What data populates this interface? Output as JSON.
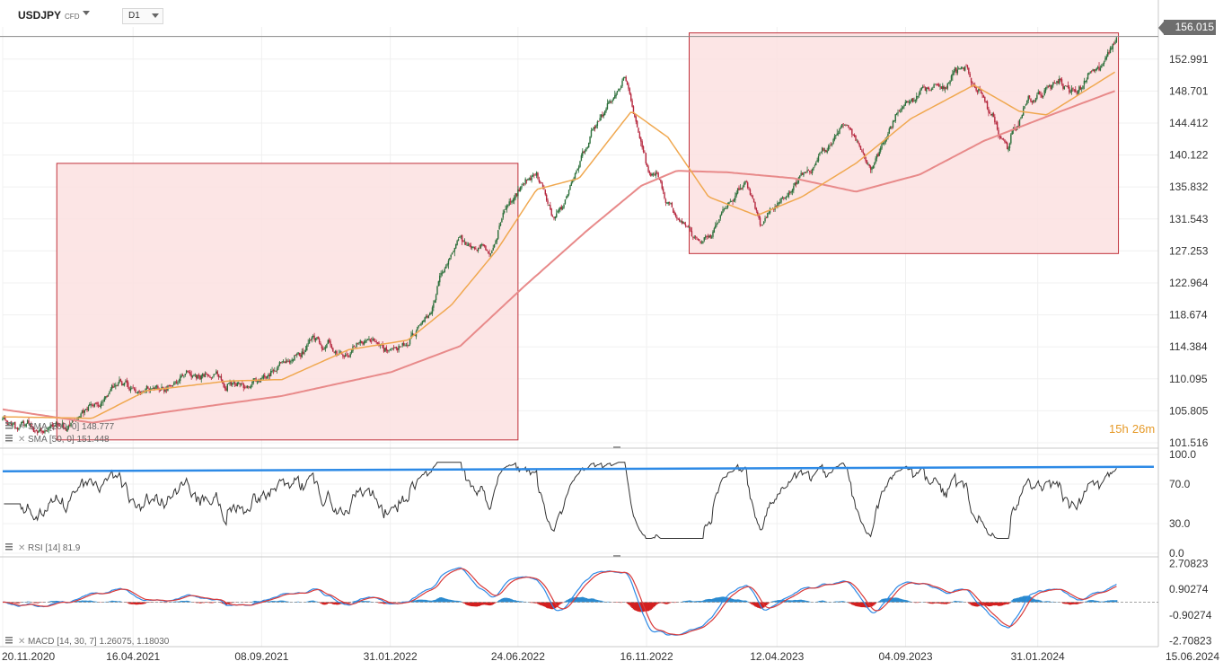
{
  "header": {
    "symbol": "USDJPY",
    "symbol_type": "CFD",
    "timeframe": "D1"
  },
  "current_price_label": "156.015",
  "timer": {
    "hours": "15",
    "h": "h",
    "minutes": "26",
    "m": "m"
  },
  "colors": {
    "up_candle": "#2b6f3a",
    "down_candle": "#b5263d",
    "sma_fast": "#f0a850",
    "sma_slow": "#e88a8a",
    "box_fill": "#fbe1e1",
    "box_stroke": "#c0303a",
    "rsi": "#333333",
    "rsi_trend": "#2d8ae6",
    "macd_line": "#2d8ae6",
    "signal_line": "#d93a3a",
    "hist_pos": "#2a8acf",
    "hist_neg": "#d21f1f"
  },
  "chart_data": [
    {
      "type": "candlestick",
      "panel": "price",
      "title": "USDJPY",
      "y_ticks": [
        "152.991",
        "148.701",
        "144.412",
        "140.122",
        "135.832",
        "131.543",
        "127.253",
        "122.964",
        "118.674",
        "114.384",
        "110.095",
        "105.805",
        "101.516"
      ],
      "ylim": [
        101.516,
        157.3
      ],
      "x_ticks": [
        "20.11.2020",
        "16.04.2021",
        "08.09.2021",
        "31.01.2022",
        "24.06.2022",
        "16.11.2022",
        "12.04.2023",
        "04.09.2023",
        "31.01.2024",
        "15.06.2024"
      ],
      "xlim": [
        "2020-11-20",
        "2024-06-15"
      ],
      "last_price": 156.015,
      "close_path": [
        [
          "2020-11-20",
          104.5
        ],
        [
          "2020-12-20",
          103.5
        ],
        [
          "2021-01-05",
          103.0
        ],
        [
          "2021-01-25",
          103.7
        ],
        [
          "2021-02-20",
          105.5
        ],
        [
          "2021-03-20",
          108.8
        ],
        [
          "2021-04-05",
          110.3
        ],
        [
          "2021-04-22",
          108.0
        ],
        [
          "2021-05-20",
          109.2
        ],
        [
          "2021-06-20",
          110.2
        ],
        [
          "2021-07-15",
          110.0
        ],
        [
          "2021-08-15",
          109.5
        ],
        [
          "2021-09-05",
          109.8
        ],
        [
          "2021-09-25",
          111.4
        ],
        [
          "2021-10-20",
          114.0
        ],
        [
          "2021-11-20",
          114.5
        ],
        [
          "2021-12-15",
          113.6
        ],
        [
          "2022-01-05",
          115.8
        ],
        [
          "2022-01-25",
          114.0
        ],
        [
          "2022-02-20",
          115.0
        ],
        [
          "2022-03-15",
          118.5
        ],
        [
          "2022-03-28",
          123.5
        ],
        [
          "2022-04-20",
          128.5
        ],
        [
          "2022-05-24",
          127.0
        ],
        [
          "2022-06-15",
          134.5
        ],
        [
          "2022-06-24",
          135.5
        ],
        [
          "2022-07-15",
          138.5
        ],
        [
          "2022-08-02",
          131.5
        ],
        [
          "2022-08-25",
          137.0
        ],
        [
          "2022-09-20",
          144.0
        ],
        [
          "2022-10-21",
          150.5
        ],
        [
          "2022-10-30",
          147.0
        ],
        [
          "2022-11-15",
          139.5
        ],
        [
          "2022-12-01",
          136.0
        ],
        [
          "2022-12-20",
          131.0
        ],
        [
          "2023-01-16",
          127.8
        ],
        [
          "2023-02-05",
          131.5
        ],
        [
          "2023-03-08",
          137.0
        ],
        [
          "2023-03-24",
          130.5
        ],
        [
          "2023-04-12",
          133.5
        ],
        [
          "2023-05-15",
          137.5
        ],
        [
          "2023-06-28",
          144.5
        ],
        [
          "2023-07-28",
          138.5
        ],
        [
          "2023-08-25",
          146.0
        ],
        [
          "2023-10-05",
          149.5
        ],
        [
          "2023-11-13",
          151.5
        ],
        [
          "2023-12-05",
          146.5
        ],
        [
          "2023-12-28",
          141.0
        ],
        [
          "2024-01-15",
          146.5
        ],
        [
          "2024-02-25",
          150.5
        ],
        [
          "2024-03-15",
          148.5
        ],
        [
          "2024-04-10",
          151.8
        ],
        [
          "2024-04-29",
          156.0
        ]
      ],
      "sma_fast": {
        "label": "SMA [50, 0]",
        "value": "151.448",
        "points": [
          [
            "2020-11-20",
            105.0
          ],
          [
            "2021-03-01",
            104.8
          ],
          [
            "2021-05-01",
            108.5
          ],
          [
            "2021-08-01",
            109.8
          ],
          [
            "2021-10-01",
            110.0
          ],
          [
            "2021-12-15",
            114.0
          ],
          [
            "2022-02-20",
            115.3
          ],
          [
            "2022-04-10",
            120.0
          ],
          [
            "2022-06-01",
            127.5
          ],
          [
            "2022-07-15",
            135.5
          ],
          [
            "2022-09-01",
            137.0
          ],
          [
            "2022-10-30",
            146.0
          ],
          [
            "2022-12-10",
            142.5
          ],
          [
            "2023-01-25",
            134.5
          ],
          [
            "2023-03-20",
            132.0
          ],
          [
            "2023-05-10",
            134.5
          ],
          [
            "2023-07-10",
            139.0
          ],
          [
            "2023-09-10",
            145.0
          ],
          [
            "2023-11-20",
            149.5
          ],
          [
            "2024-01-10",
            146.0
          ],
          [
            "2024-02-10",
            145.5
          ],
          [
            "2024-04-29",
            151.4
          ]
        ]
      },
      "sma_slow": {
        "label": "SMA [200, 0]",
        "value": "148.777",
        "points": [
          [
            "2020-11-20",
            106.0
          ],
          [
            "2021-03-01",
            104.2
          ],
          [
            "2021-06-01",
            105.8
          ],
          [
            "2021-10-01",
            107.8
          ],
          [
            "2022-02-01",
            111.0
          ],
          [
            "2022-04-20",
            114.5
          ],
          [
            "2022-07-01",
            122.5
          ],
          [
            "2022-09-10",
            130.0
          ],
          [
            "2022-11-10",
            136.0
          ],
          [
            "2022-12-20",
            138.0
          ],
          [
            "2023-02-15",
            137.8
          ],
          [
            "2023-05-01",
            137.0
          ],
          [
            "2023-07-10",
            135.2
          ],
          [
            "2023-09-20",
            137.5
          ],
          [
            "2023-12-01",
            142.0
          ],
          [
            "2024-02-15",
            145.5
          ],
          [
            "2024-04-29",
            148.8
          ]
        ]
      },
      "boxes": [
        {
          "from": "2021-01-20",
          "to": "2022-06-24",
          "low": 101.9,
          "high": 139.0
        },
        {
          "from": "2023-01-03",
          "to": "2024-05-01",
          "low": 126.9,
          "high": 156.5
        }
      ]
    },
    {
      "type": "line",
      "panel": "rsi",
      "label": "RSI [14]",
      "value": "81.9",
      "y_ticks": [
        "100.0",
        "70.0",
        "30.0",
        "0.0"
      ],
      "ylim": [
        0,
        100
      ],
      "trend_line": {
        "from": [
          "2020-11-20",
          83.0
        ],
        "to": [
          "2024-06-15",
          87.5
        ]
      }
    },
    {
      "type": "line+histogram",
      "panel": "macd",
      "label": "MACD [14, 30, 7]",
      "macd_value": "1.26075",
      "signal_value": "1.18030",
      "y_ticks": [
        "2.70823",
        "0.90274",
        "-0.90274",
        "-2.70823"
      ],
      "ylim": [
        -3.1,
        3.1
      ]
    }
  ]
}
